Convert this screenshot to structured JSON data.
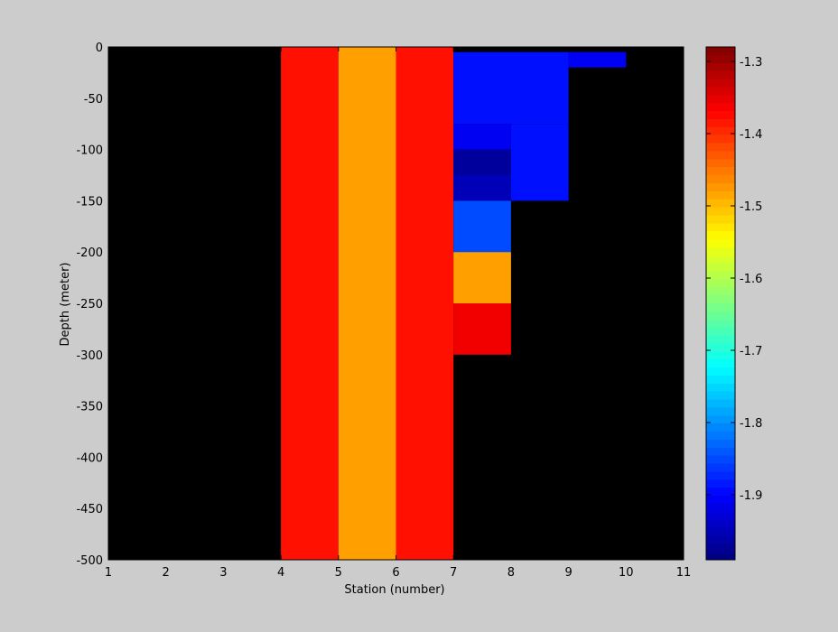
{
  "chart_data": {
    "type": "heatmap",
    "title": "",
    "xlabel": "Station (number)",
    "ylabel": "Depth (meter)",
    "xlim": [
      1,
      11
    ],
    "ylim": [
      -500,
      0
    ],
    "xticks": [
      "1",
      "2",
      "3",
      "4",
      "5",
      "6",
      "7",
      "8",
      "9",
      "10",
      "11"
    ],
    "xtick_values": [
      1,
      2,
      3,
      4,
      5,
      6,
      7,
      8,
      9,
      10,
      11
    ],
    "yticks": [
      "0",
      "-50",
      "-100",
      "-150",
      "-200",
      "-250",
      "-300",
      "-350",
      "-400",
      "-450",
      "-500"
    ],
    "ytick_values": [
      0,
      -50,
      -100,
      -150,
      -200,
      -250,
      -300,
      -350,
      -400,
      -450,
      -500
    ],
    "background_color": "#000000",
    "colorbar": {
      "colormap": "jet",
      "range": [
        -1.99,
        -1.28
      ],
      "ticks": [
        "-1.3",
        "-1.4",
        "-1.5",
        "-1.6",
        "-1.7",
        "-1.8",
        "-1.9"
      ],
      "tick_values": [
        -1.3,
        -1.4,
        -1.5,
        -1.6,
        -1.7,
        -1.8,
        -1.9
      ]
    },
    "cells": [
      {
        "x": [
          4,
          5
        ],
        "depth": [
          0,
          -500
        ],
        "value": -1.38
      },
      {
        "x": [
          5,
          6
        ],
        "depth": [
          0,
          -500
        ],
        "value": -1.48
      },
      {
        "x": [
          6,
          7
        ],
        "depth": [
          0,
          -500
        ],
        "value": -1.38
      },
      {
        "x": [
          7,
          9
        ],
        "depth": [
          -5,
          -75
        ],
        "value": -1.89
      },
      {
        "x": [
          8,
          9
        ],
        "depth": [
          -75,
          -150
        ],
        "value": -1.89
      },
      {
        "x": [
          7,
          8
        ],
        "depth": [
          -75,
          -100
        ],
        "value": -1.91
      },
      {
        "x": [
          7,
          8
        ],
        "depth": [
          -100,
          -125
        ],
        "value": -1.97
      },
      {
        "x": [
          7,
          8
        ],
        "depth": [
          -125,
          -150
        ],
        "value": -1.95
      },
      {
        "x": [
          7,
          8
        ],
        "depth": [
          -150,
          -200
        ],
        "value": -1.85
      },
      {
        "x": [
          7,
          8
        ],
        "depth": [
          -200,
          -250
        ],
        "value": -1.48
      },
      {
        "x": [
          7,
          8
        ],
        "depth": [
          -250,
          -300
        ],
        "value": -1.36
      },
      {
        "x": [
          9,
          10
        ],
        "depth": [
          -5,
          -20
        ],
        "value": -1.91
      }
    ]
  }
}
